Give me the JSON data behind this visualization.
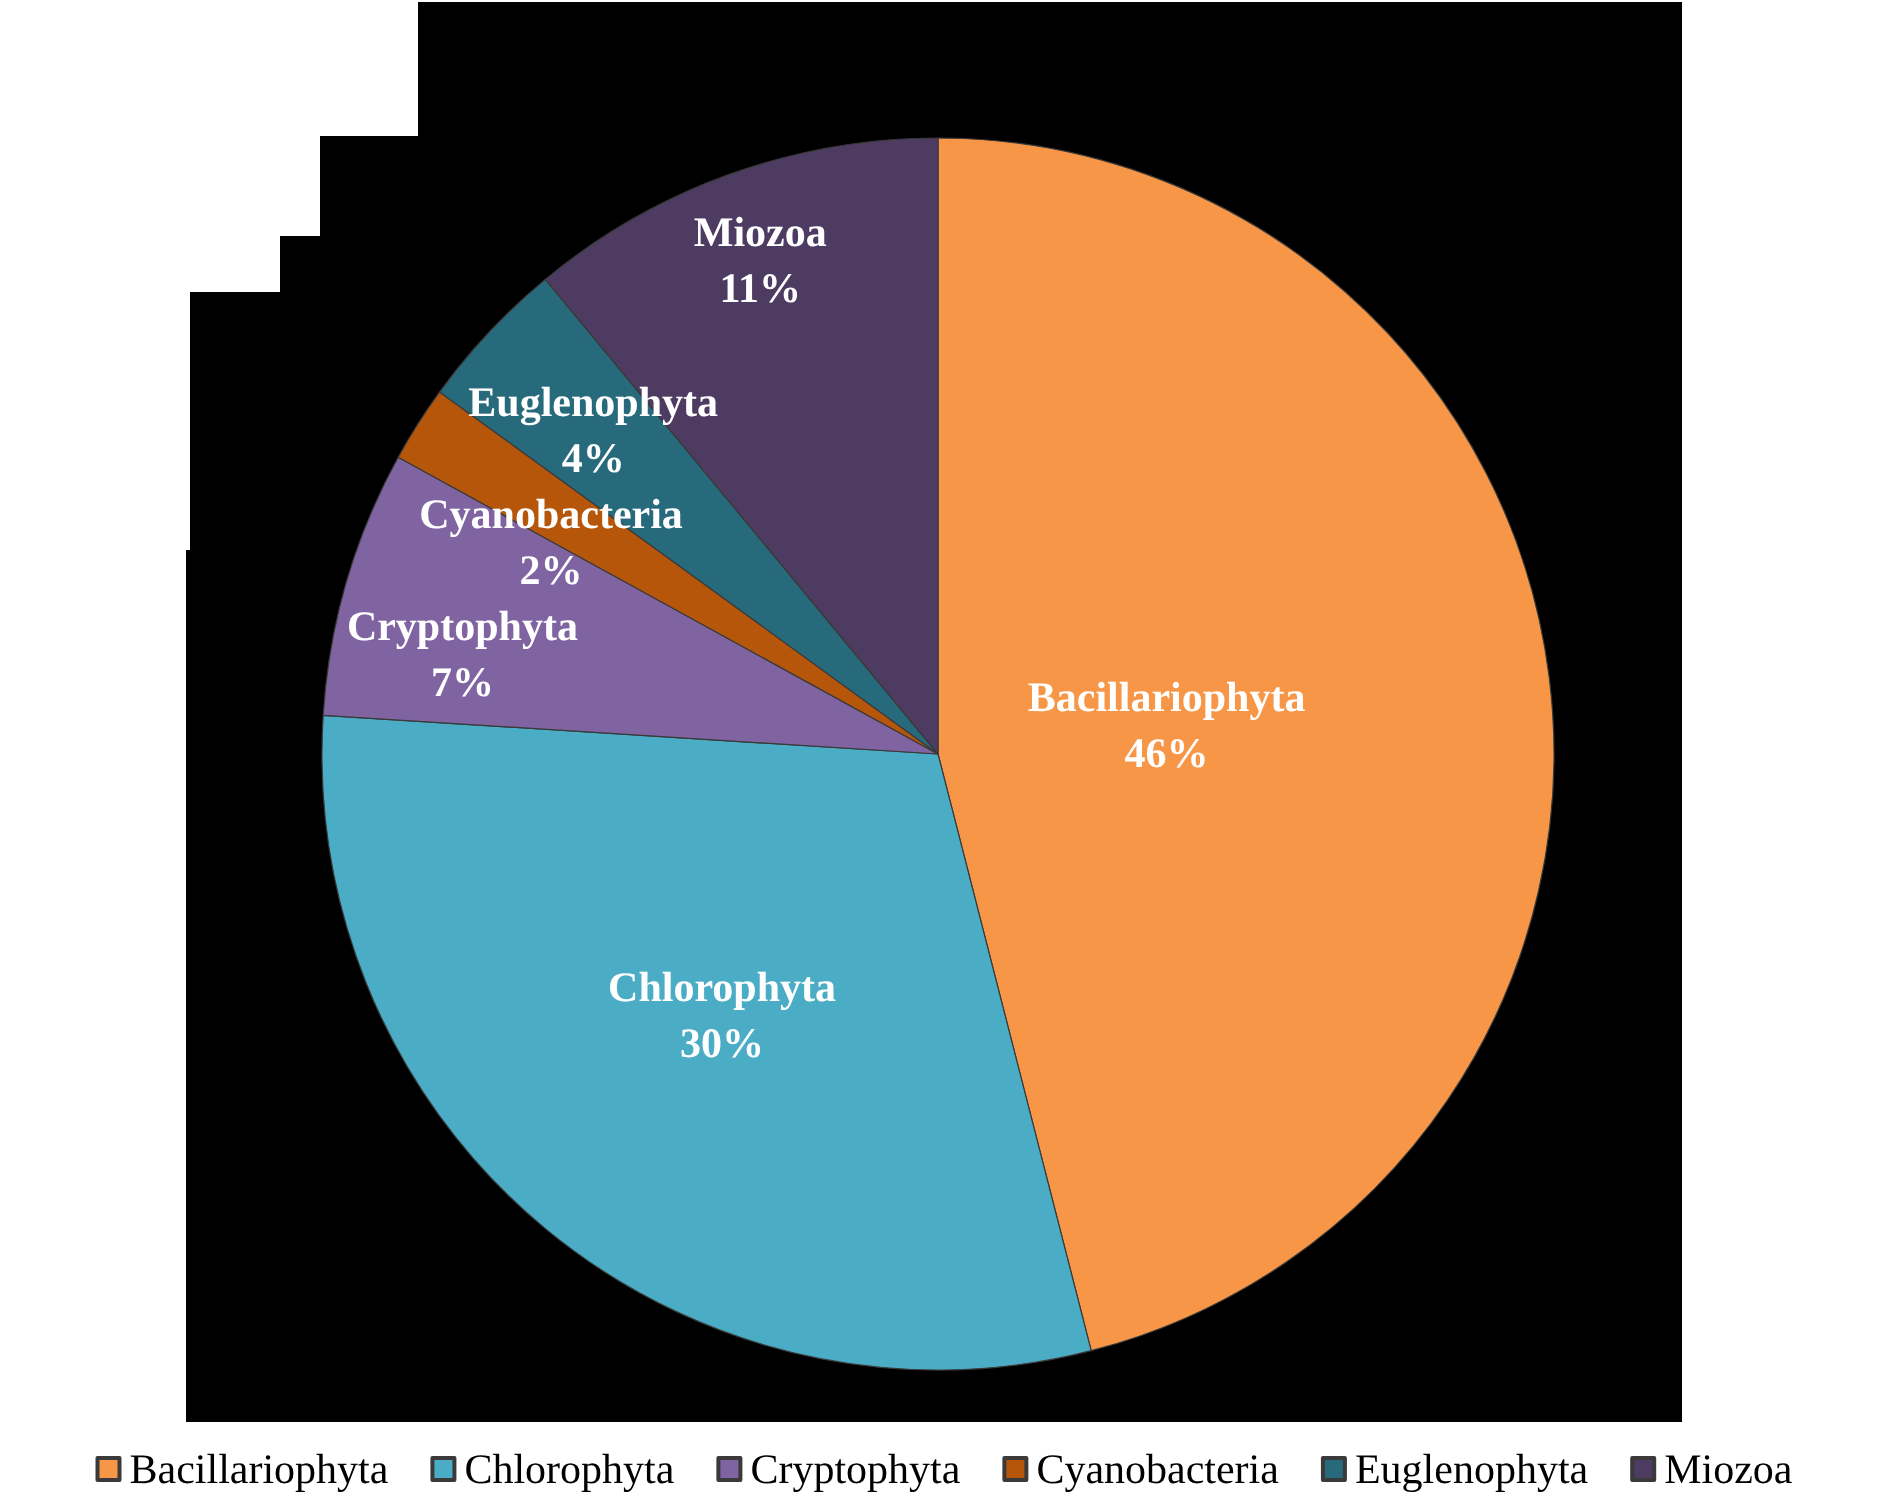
{
  "chart_data": {
    "type": "pie",
    "categories": [
      "Bacillariophyta",
      "Chlorophyta",
      "Cryptophyta",
      "Cyanobacteria",
      "Euglenophyta",
      "Miozoa"
    ],
    "values": [
      46,
      30,
      7,
      2,
      4,
      11
    ],
    "colors": [
      "#f79646",
      "#4bacc6",
      "#8064a2",
      "#b5560a",
      "#276a7c",
      "#4d3b62"
    ],
    "value_labels": [
      "46%",
      "30%",
      "7%",
      "2%",
      "4%",
      "11%"
    ],
    "legend": "bottom"
  }
}
